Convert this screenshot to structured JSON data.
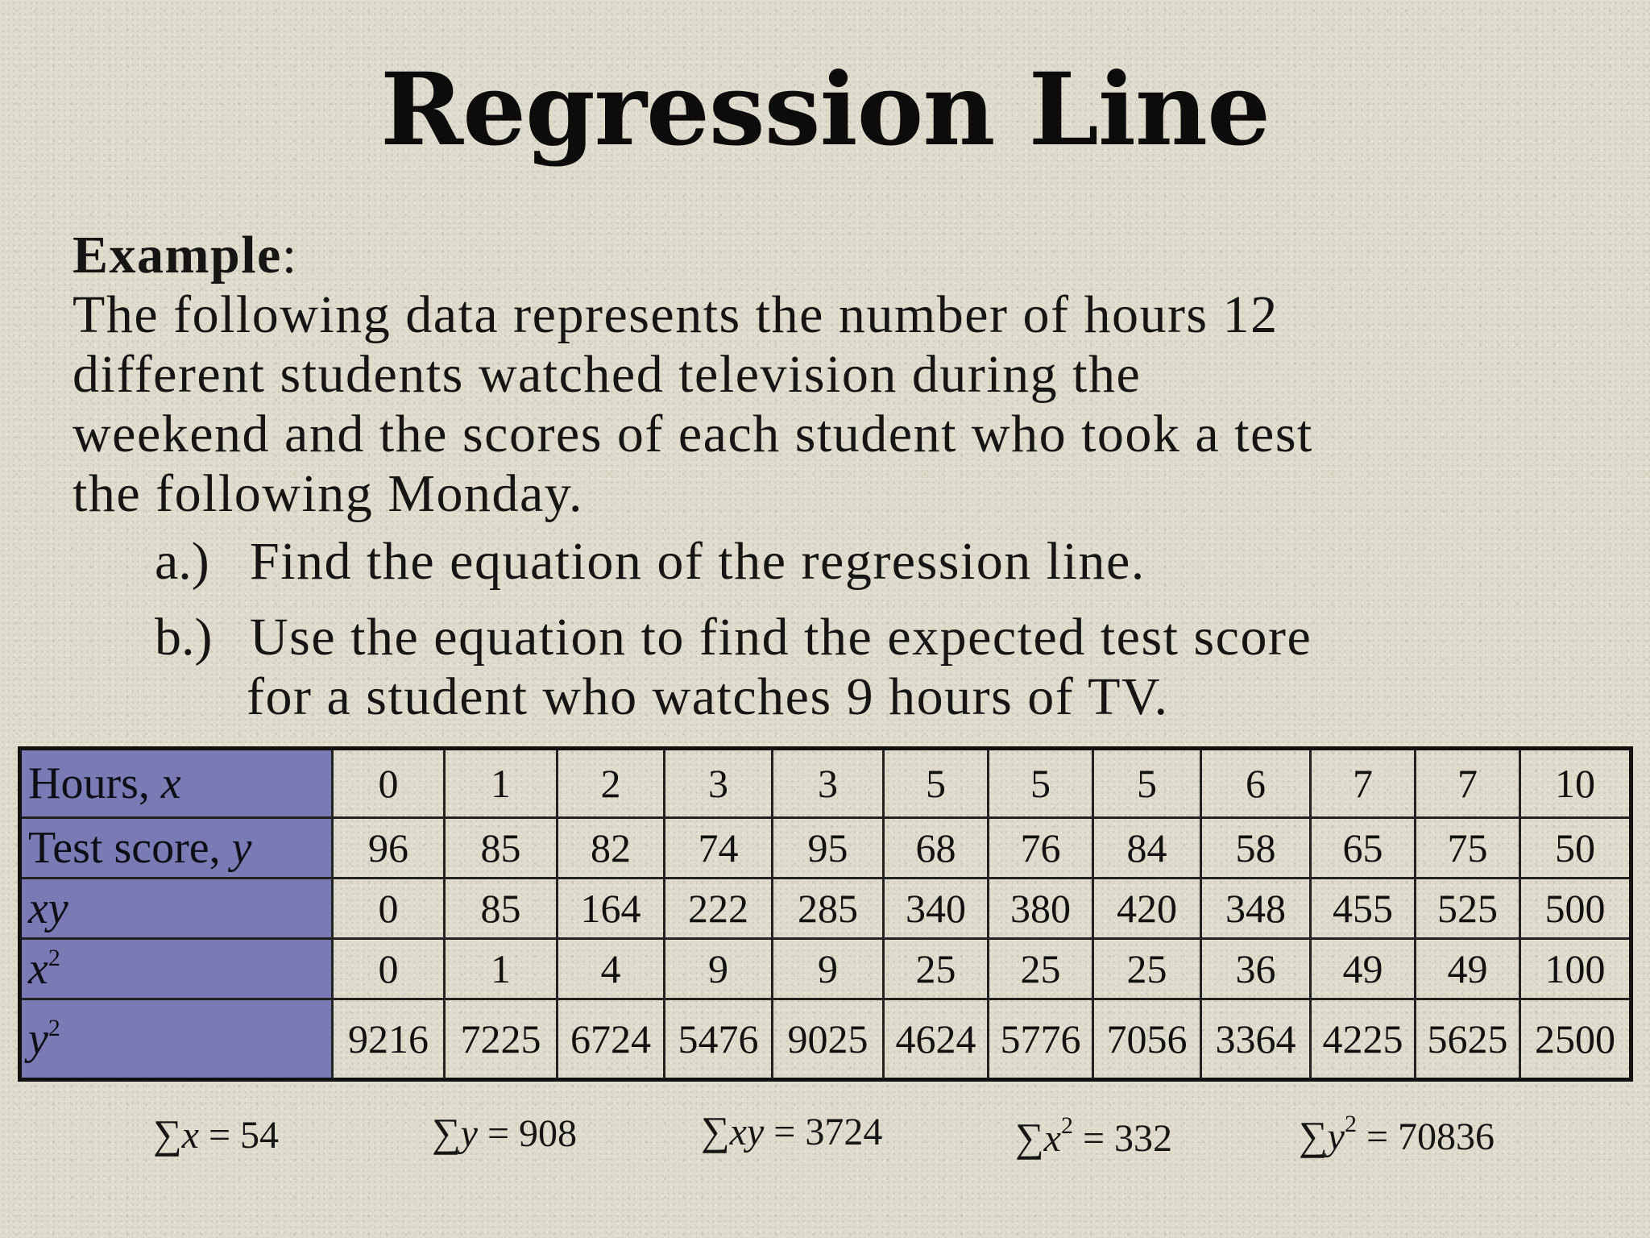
{
  "slide": {
    "title": "Regression Line",
    "example_label": "Example",
    "example_colon": ":",
    "paragraph_lines": [
      "The following data represents the number of hours 12",
      "different students watched television during the",
      "weekend and the scores of each student who took a test",
      "the following Monday."
    ],
    "questions": [
      {
        "marker": "a.)",
        "lines": [
          "Find the equation of the regression line."
        ]
      },
      {
        "marker": "b.)",
        "lines": [
          "Use the equation to find the expected test score",
          "for a student who watches 9 hours of TV."
        ]
      }
    ]
  },
  "table": {
    "header_color": "#7a7ab5",
    "rows": [
      {
        "label_text": "Hours, ",
        "label_var": "x",
        "label_sup": "",
        "values": [
          "0",
          "1",
          "2",
          "3",
          "3",
          "5",
          "5",
          "5",
          "6",
          "7",
          "7",
          "10"
        ]
      },
      {
        "label_text": "Test score, ",
        "label_var": "y",
        "label_sup": "",
        "values": [
          "96",
          "85",
          "82",
          "74",
          "95",
          "68",
          "76",
          "84",
          "58",
          "65",
          "75",
          "50"
        ]
      },
      {
        "label_text": "",
        "label_var": "xy",
        "label_sup": "",
        "values": [
          "0",
          "85",
          "164",
          "222",
          "285",
          "340",
          "380",
          "420",
          "348",
          "455",
          "525",
          "500"
        ]
      },
      {
        "label_text": "",
        "label_var": "x",
        "label_sup": "2",
        "values": [
          "0",
          "1",
          "4",
          "9",
          "9",
          "25",
          "25",
          "25",
          "36",
          "49",
          "49",
          "100"
        ]
      },
      {
        "label_text": "",
        "label_var": "y",
        "label_sup": "2",
        "values": [
          "9216",
          "7225",
          "6724",
          "5476",
          "9025",
          "4624",
          "5776",
          "7056",
          "3364",
          "4225",
          "5625",
          "2500"
        ]
      }
    ]
  },
  "sums": [
    {
      "symbol": "∑",
      "var": "x",
      "sup": "",
      "rhs": " = 54"
    },
    {
      "symbol": "∑",
      "var": "y",
      "sup": "",
      "rhs": " = 908"
    },
    {
      "symbol": "∑",
      "var": "xy",
      "sup": "",
      "rhs": " = 3724"
    },
    {
      "symbol": "∑",
      "var": "x",
      "sup": "2",
      "rhs": " = 332"
    },
    {
      "symbol": "∑",
      "var": "y",
      "sup": "2",
      "rhs": " = 70836"
    }
  ]
}
